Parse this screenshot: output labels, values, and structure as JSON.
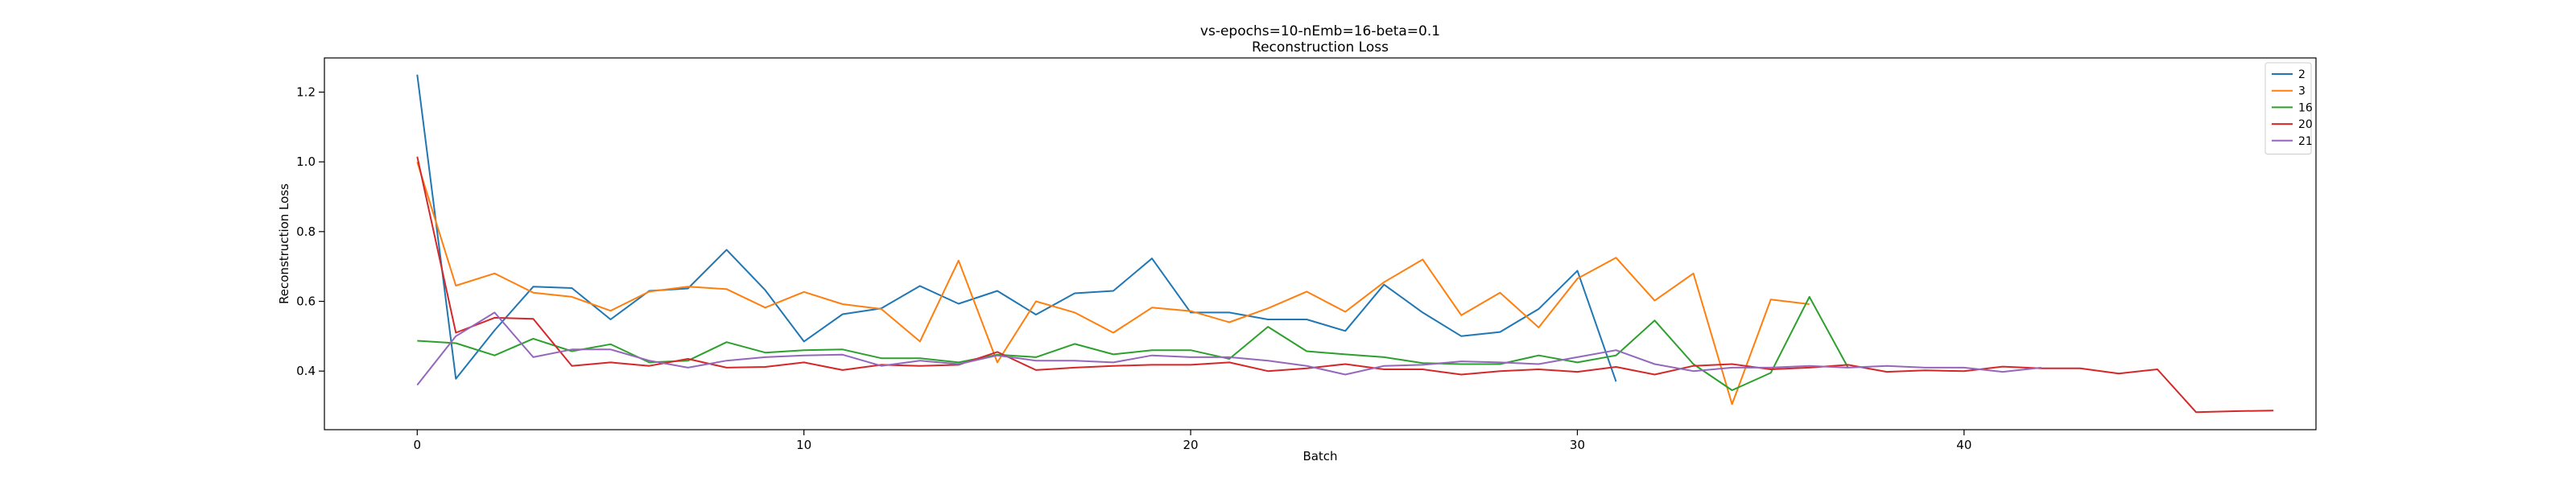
{
  "chart_data": {
    "type": "line",
    "title": "vs-epochs=10-nEmb=16-beta=0.1",
    "subtitle": "Reconstruction Loss",
    "xlabel": "Batch",
    "ylabel": "Reconstruction Loss",
    "xlim": [
      -2.4,
      49.1
    ],
    "ylim": [
      0.232,
      1.298
    ],
    "xticks": [
      0,
      10,
      20,
      30,
      40
    ],
    "yticks": [
      0.4,
      0.6,
      0.8,
      1.0,
      1.2
    ],
    "xtick_labels": [
      "0",
      "10",
      "20",
      "30",
      "40"
    ],
    "ytick_labels": [
      "0.4",
      "0.6",
      "0.8",
      "1.0",
      "1.2"
    ],
    "grid": false,
    "legend_position": "top-right",
    "series": [
      {
        "name": "2",
        "color": "#1f77b4",
        "values": [
          1.25,
          0.378,
          0.517,
          0.642,
          0.638,
          0.548,
          0.63,
          0.637,
          0.748,
          0.632,
          0.485,
          0.563,
          0.58,
          0.644,
          0.593,
          0.63,
          0.562,
          0.623,
          0.63,
          0.723,
          0.568,
          0.568,
          0.548,
          0.548,
          0.515,
          0.648,
          0.568,
          0.5,
          0.512,
          0.578,
          0.688,
          0.37
        ]
      },
      {
        "name": "3",
        "color": "#ff7f0e",
        "values": [
          1.0,
          0.645,
          0.68,
          0.625,
          0.613,
          0.573,
          0.628,
          0.642,
          0.635,
          0.582,
          0.627,
          0.592,
          0.578,
          0.485,
          0.717,
          0.425,
          0.6,
          0.568,
          0.51,
          0.582,
          0.572,
          0.54,
          0.58,
          0.628,
          0.57,
          0.655,
          0.72,
          0.56,
          0.625,
          0.525,
          0.665,
          0.725,
          0.602,
          0.68,
          0.305,
          0.605,
          0.592
        ]
      },
      {
        "name": "16",
        "color": "#2ca02c",
        "values": [
          0.487,
          0.48,
          0.445,
          0.493,
          0.457,
          0.477,
          0.425,
          0.43,
          0.483,
          0.453,
          0.46,
          0.462,
          0.437,
          0.437,
          0.425,
          0.447,
          0.44,
          0.478,
          0.448,
          0.46,
          0.46,
          0.435,
          0.527,
          0.457,
          0.448,
          0.44,
          0.423,
          0.42,
          0.42,
          0.445,
          0.425,
          0.445,
          0.545,
          0.42,
          0.345,
          0.395,
          0.613,
          0.41
        ]
      },
      {
        "name": "20",
        "color": "#d62728",
        "values": [
          1.015,
          0.51,
          0.553,
          0.55,
          0.415,
          0.425,
          0.415,
          0.435,
          0.41,
          0.412,
          0.425,
          0.403,
          0.418,
          0.415,
          0.418,
          0.455,
          0.403,
          0.41,
          0.415,
          0.418,
          0.418,
          0.425,
          0.4,
          0.408,
          0.42,
          0.405,
          0.405,
          0.39,
          0.4,
          0.405,
          0.398,
          0.412,
          0.39,
          0.415,
          0.42,
          0.405,
          0.41,
          0.418,
          0.398,
          0.402,
          0.4,
          0.413,
          0.408,
          0.408,
          0.393,
          0.405,
          0.282,
          0.285,
          0.287
        ]
      },
      {
        "name": "21",
        "color": "#9467bd",
        "values": [
          0.36,
          0.5,
          0.568,
          0.44,
          0.462,
          0.462,
          0.43,
          0.41,
          0.43,
          0.44,
          0.445,
          0.447,
          0.415,
          0.43,
          0.42,
          0.445,
          0.43,
          0.43,
          0.425,
          0.445,
          0.44,
          0.44,
          0.43,
          0.415,
          0.39,
          0.415,
          0.418,
          0.428,
          0.425,
          0.42,
          0.44,
          0.46,
          0.42,
          0.4,
          0.41,
          0.41,
          0.415,
          0.41,
          0.415,
          0.41,
          0.41,
          0.398,
          0.41
        ]
      }
    ]
  }
}
